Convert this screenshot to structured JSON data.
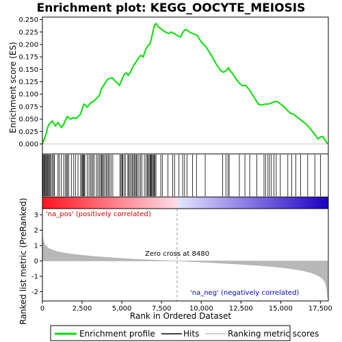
{
  "chart_data": {
    "type": "line",
    "title": "Enrichment plot: KEGG_OOCYTE_MEIOSIS",
    "xlabel": "Rank in Ordered Dataset",
    "ylabel_top": "Enrichment score (ES)",
    "ylabel_bottom": "Ranked list metric (PreRanked)",
    "xlim": [
      0,
      18000
    ],
    "x_ticks": [
      0,
      2500,
      5000,
      7500,
      10000,
      12500,
      15000,
      17500
    ],
    "x_tick_labels": [
      "0",
      "2,500",
      "5,000",
      "7,500",
      "10,000",
      "12,500",
      "15,000",
      "17,500"
    ],
    "es_ylim": [
      -0.02,
      0.255
    ],
    "es_ticks": [
      0.0,
      0.025,
      0.05,
      0.075,
      0.1,
      0.125,
      0.15,
      0.175,
      0.2,
      0.225,
      0.25
    ],
    "es_tick_labels": [
      "0.000",
      "0.025",
      "0.050",
      "0.075",
      "0.100",
      "0.125",
      "0.150",
      "0.175",
      "0.200",
      "0.225",
      "0.250"
    ],
    "metric_ylim": [
      -2.6,
      3.4
    ],
    "metric_ticks": [
      3,
      2,
      1,
      0,
      -1,
      -2
    ],
    "metric_tick_labels": [
      "3",
      "2",
      "1",
      "0",
      "-1",
      "-2"
    ],
    "annotations": {
      "pos": "'na_pos' (positively correlated)",
      "neg": "'na_neg' (negatively correlated)",
      "zero": "Zero cross at 8480"
    },
    "zero_cross": 8480,
    "n_genes": 17950,
    "series": [
      {
        "name": "Enrichment profile",
        "color": "#00e000",
        "x": [
          0,
          60,
          150,
          250,
          330,
          420,
          520,
          620,
          700,
          820,
          980,
          1080,
          1200,
          1350,
          1450,
          1560,
          1680,
          1800,
          1950,
          2100,
          2250,
          2400,
          2500,
          2560,
          2620,
          2700,
          2820,
          2950,
          3050,
          3180,
          3300,
          3450,
          3600,
          3700,
          3800,
          3900,
          4000,
          4100,
          4250,
          4400,
          4600,
          4850,
          4950,
          5050,
          5150,
          5280,
          5400,
          5550,
          5650,
          5780,
          5900,
          6000,
          6100,
          6200,
          6350,
          6500,
          6650,
          6750,
          6850,
          6950,
          7050,
          7150,
          7300,
          7450,
          7600,
          7800,
          7950,
          8100,
          8300,
          8500,
          8700,
          8850,
          9000,
          9150,
          9300,
          9450,
          9600,
          9750,
          10000,
          10300,
          10600,
          10900,
          11200,
          11400,
          11600,
          11700,
          11800,
          12000,
          12200,
          12400,
          12600,
          12800,
          13000,
          13200,
          13400,
          13600,
          13800,
          14000,
          14200,
          14400,
          14600,
          14800,
          15000,
          15200,
          15400,
          15600,
          15800,
          16000,
          16200,
          16400,
          16600,
          16800,
          17000,
          17200,
          17350,
          17500,
          17650,
          17800,
          17950
        ],
        "y": [
          0.0,
          0.006,
          0.013,
          0.022,
          0.033,
          0.04,
          0.043,
          0.046,
          0.042,
          0.036,
          0.043,
          0.038,
          0.033,
          0.04,
          0.048,
          0.055,
          0.052,
          0.05,
          0.053,
          0.051,
          0.055,
          0.06,
          0.07,
          0.075,
          0.08,
          0.078,
          0.074,
          0.079,
          0.083,
          0.085,
          0.088,
          0.093,
          0.098,
          0.11,
          0.115,
          0.12,
          0.125,
          0.13,
          0.132,
          0.133,
          0.126,
          0.118,
          0.125,
          0.133,
          0.14,
          0.143,
          0.138,
          0.145,
          0.152,
          0.16,
          0.165,
          0.17,
          0.175,
          0.178,
          0.175,
          0.19,
          0.198,
          0.2,
          0.21,
          0.225,
          0.238,
          0.242,
          0.235,
          0.232,
          0.228,
          0.224,
          0.222,
          0.225,
          0.222,
          0.218,
          0.215,
          0.225,
          0.23,
          0.228,
          0.224,
          0.222,
          0.22,
          0.218,
          0.205,
          0.195,
          0.18,
          0.163,
          0.148,
          0.144,
          0.148,
          0.153,
          0.148,
          0.14,
          0.13,
          0.122,
          0.117,
          0.118,
          0.11,
          0.1,
          0.09,
          0.08,
          0.078,
          0.08,
          0.08,
          0.082,
          0.085,
          0.085,
          0.08,
          0.075,
          0.068,
          0.062,
          0.06,
          0.055,
          0.05,
          0.045,
          0.04,
          0.033,
          0.025,
          0.017,
          0.01,
          0.014,
          0.015,
          0.008,
          0.0
        ]
      }
    ],
    "hits": [
      30,
      80,
      130,
      170,
      220,
      270,
      330,
      380,
      430,
      480,
      550,
      620,
      700,
      760,
      980,
      1060,
      1180,
      1340,
      1450,
      1520,
      1580,
      1660,
      1820,
      1970,
      2080,
      2240,
      2400,
      2470,
      2530,
      2580,
      2620,
      2670,
      2820,
      2930,
      3020,
      3100,
      3180,
      3260,
      3400,
      3490,
      3580,
      3660,
      3720,
      3780,
      3840,
      3920,
      4010,
      4080,
      4160,
      4230,
      4320,
      4430,
      4880,
      4950,
      5010,
      5060,
      5150,
      5240,
      5380,
      5430,
      5510,
      5590,
      5660,
      5730,
      5800,
      5860,
      5920,
      5990,
      6080,
      6180,
      6260,
      6420,
      6520,
      6600,
      6650,
      6720,
      6780,
      6820,
      6870,
      6930,
      6980,
      7030,
      7080,
      7150,
      7450,
      7550,
      7900,
      8200,
      8320,
      8600,
      8830,
      8950,
      9100,
      9450,
      9700,
      10250,
      11350,
      11550,
      11680,
      11760,
      12400,
      12750,
      13050,
      13500,
      13950,
      14050,
      14200,
      14300,
      14420,
      14580,
      14720,
      14980,
      15450,
      15700,
      15950,
      16250,
      16700,
      17150,
      17500
    ],
    "metric_curve": {
      "x": [
        0,
        30,
        80,
        150,
        250,
        400,
        600,
        900,
        1300,
        1800,
        2500,
        3300,
        4200,
        5200,
        6300,
        7400,
        8480,
        9500,
        10500,
        11500,
        12500,
        13500,
        14300,
        15000,
        15600,
        16100,
        16500,
        16850,
        17150,
        17400,
        17600,
        17750,
        17850,
        17920,
        17950
      ],
      "y": [
        1.75,
        1.45,
        1.25,
        1.08,
        0.95,
        0.82,
        0.72,
        0.62,
        0.53,
        0.45,
        0.37,
        0.29,
        0.22,
        0.15,
        0.09,
        0.04,
        0.0,
        -0.05,
        -0.1,
        -0.16,
        -0.22,
        -0.29,
        -0.35,
        -0.42,
        -0.5,
        -0.58,
        -0.66,
        -0.75,
        -0.86,
        -0.98,
        -1.12,
        -1.3,
        -1.55,
        -2.0,
        -2.4
      ]
    },
    "legend": [
      {
        "label": "Enrichment profile",
        "color": "#00e000"
      },
      {
        "label": "Hits",
        "color": "#000000"
      },
      {
        "label": "Ranking metric scores",
        "color": "#c0c0c0"
      }
    ]
  }
}
